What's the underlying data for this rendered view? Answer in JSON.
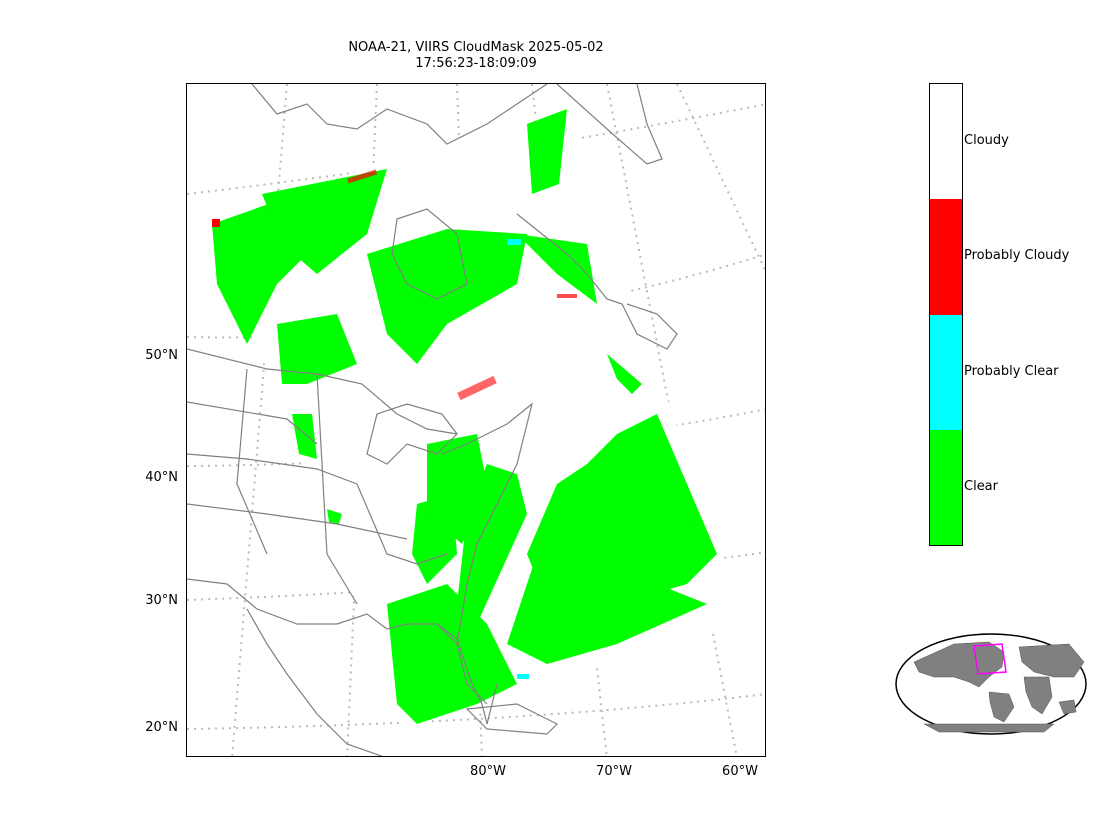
{
  "title": {
    "line1": "NOAA-21, VIIRS CloudMask 2025-05-02",
    "line2": "17:56:23-18:09:09"
  },
  "latitude_labels": [
    "50°N",
    "40°N",
    "30°N",
    "20°N"
  ],
  "longitude_labels": [
    "80°W",
    "70°W",
    "60°W"
  ],
  "legend": {
    "categories": [
      {
        "label": "Cloudy",
        "color": "#ffffff"
      },
      {
        "label": "Probably Cloudy",
        "color": "#ff0000"
      },
      {
        "label": "Probably Clear",
        "color": "#00ffff"
      },
      {
        "label": "Clear",
        "color": "#00ff00"
      }
    ]
  },
  "colors": {
    "coastline": "#808080",
    "graticule": "#bbbbbb",
    "inset_land": "#808080",
    "inset_box": "#ff00ff"
  }
}
